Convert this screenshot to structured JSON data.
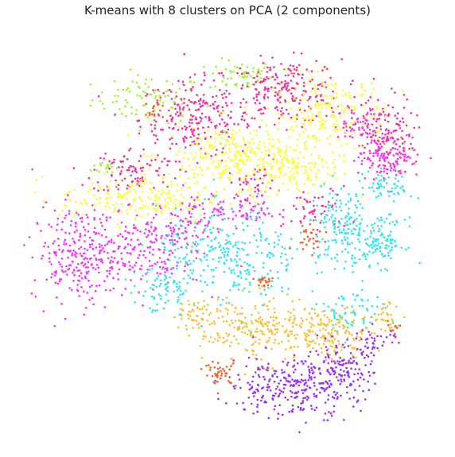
{
  "chart_data": {
    "type": "scatter",
    "title": "K-means with 8 clusters on PCA (2 components)",
    "xlabel": "",
    "ylabel": "",
    "axes_visible": false,
    "grid": false,
    "legend": "none",
    "xlim": [
      0,
      100
    ],
    "ylim": [
      0,
      100
    ],
    "series": [
      {
        "color": "#9DF52E",
        "blobs": [
          [
            30,
            84,
            7,
            3,
            90
          ],
          [
            53,
            90,
            4,
            2,
            60
          ],
          [
            20,
            67,
            2,
            1,
            18
          ]
        ]
      },
      {
        "color": "#F32CA3",
        "blobs": [
          [
            42,
            79,
            7,
            5,
            240
          ],
          [
            64,
            86,
            7,
            4,
            220
          ],
          [
            26,
            66,
            5,
            3,
            90
          ],
          [
            88,
            75,
            4,
            5,
            160
          ],
          [
            72,
            56,
            4,
            3,
            50
          ],
          [
            56,
            63,
            3,
            2,
            40
          ]
        ]
      },
      {
        "color": "#FEFE2C",
        "blobs": [
          [
            75,
            80,
            7,
            5,
            230
          ],
          [
            52,
            70,
            9,
            4,
            300
          ],
          [
            28,
            59,
            10,
            3,
            230
          ],
          [
            66,
            66,
            6,
            3,
            120
          ]
        ]
      },
      {
        "color": "#F732F7",
        "blobs": [
          [
            13,
            45,
            6,
            6,
            280
          ],
          [
            30,
            47,
            7,
            5,
            180
          ],
          [
            54,
            56,
            4,
            2,
            70
          ],
          [
            90,
            70,
            4,
            3,
            110
          ],
          [
            82,
            78,
            3,
            2,
            40
          ],
          [
            40,
            55,
            3,
            3,
            60
          ]
        ]
      },
      {
        "color": "#2EE6F2",
        "blobs": [
          [
            50,
            44,
            9,
            6,
            300
          ],
          [
            78,
            52,
            4,
            5,
            160
          ],
          [
            88,
            48,
            3,
            3,
            110
          ],
          [
            80,
            30,
            4,
            3,
            70
          ],
          [
            33,
            36,
            4,
            3,
            60
          ],
          [
            90,
            62,
            3,
            2,
            60
          ]
        ]
      },
      {
        "color": "#FBC02D",
        "blobs": [
          [
            57,
            26,
            7,
            4,
            220
          ],
          [
            76,
            25,
            5,
            3,
            160
          ],
          [
            42,
            30,
            3,
            2,
            50
          ],
          [
            90,
            29,
            2,
            2,
            30
          ]
        ]
      },
      {
        "color": "#9A2EF2",
        "blobs": [
          [
            66,
            12,
            8,
            4,
            300
          ],
          [
            78,
            16,
            4,
            3,
            100
          ],
          [
            86,
            23,
            3,
            2,
            40
          ]
        ]
      },
      {
        "color": "#F35E25",
        "blobs": [
          [
            48,
            15,
            2,
            1.5,
            40
          ],
          [
            70,
            50,
            2,
            2,
            30
          ],
          [
            59,
            38,
            1.5,
            1,
            20
          ],
          [
            32,
            81,
            1.5,
            2,
            20
          ],
          [
            91,
            27,
            1,
            1,
            10
          ]
        ]
      }
    ]
  }
}
